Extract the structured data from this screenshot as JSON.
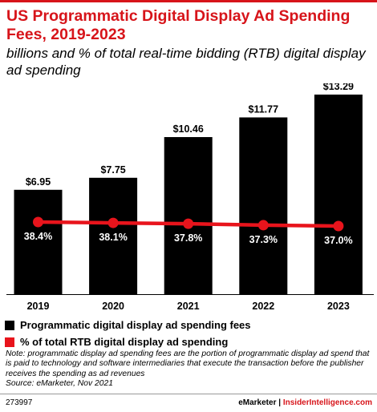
{
  "header": {
    "title": "US Programmatic Digital Display Ad Spending Fees, 2019-2023",
    "subtitle": "billions and % of total real-time bidding (RTB) digital display ad spending"
  },
  "chart_data": {
    "type": "bar",
    "categories": [
      "2019",
      "2020",
      "2021",
      "2022",
      "2023"
    ],
    "series": [
      {
        "name": "Programmatic digital display ad spending fees",
        "type": "bar",
        "values": [
          6.95,
          7.75,
          10.46,
          11.77,
          13.29
        ],
        "labels": [
          "$6.95",
          "$7.75",
          "$10.46",
          "$11.77",
          "$13.29"
        ],
        "color": "#000000"
      },
      {
        "name": "% of total RTB digital display ad spending",
        "type": "line",
        "values": [
          38.4,
          38.1,
          37.8,
          37.3,
          37.0
        ],
        "labels": [
          "38.4%",
          "38.1%",
          "37.8%",
          "37.3%",
          "37.0%"
        ],
        "color": "#e8141c"
      }
    ],
    "grid": false,
    "legend_position": "bottom-left"
  },
  "note": {
    "text": "Note: programmatic display ad spending fees are the portion of programmatic display ad spend that is paid to technology and software intermediaries that execute the transaction before the publisher receives the spending as ad revenues",
    "source": "Source: eMarketer, Nov 2021"
  },
  "footer": {
    "chart_id": "273997",
    "brand_a": "eMarketer",
    "separator": "|",
    "brand_b": "InsiderIntelligence.com"
  }
}
